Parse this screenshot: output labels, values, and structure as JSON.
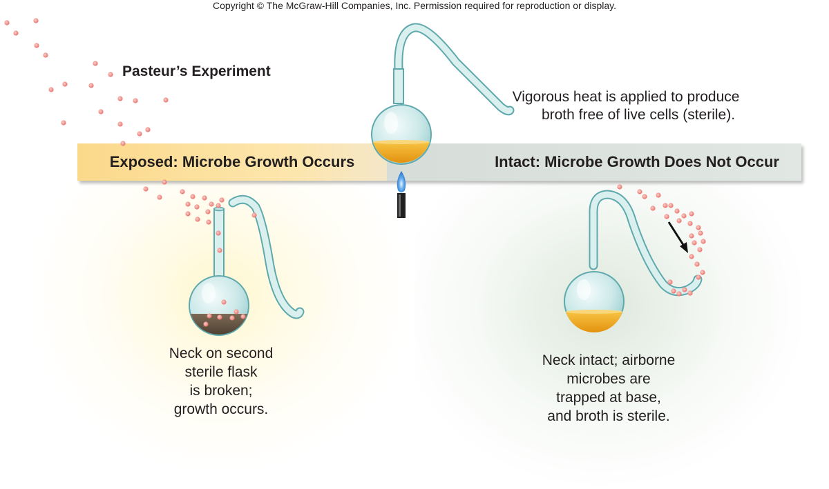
{
  "copyright": "Copyright © The McGraw-Hill Companies, Inc. Permission required for reproduction or display.",
  "title": "Pasteur’s Experiment",
  "band": {
    "left_label": "Exposed: Microbe Growth Occurs",
    "right_label": "Intact: Microbe Growth Does Not Occur"
  },
  "notes": {
    "heat_line1": "Vigorous heat is applied to produce",
    "heat_line2": "broth free of live cells (sterile).",
    "broken_lines": [
      "Neck on second",
      "sterile flask",
      "is broken;",
      "growth occurs."
    ],
    "intact_lines": [
      "Neck intact; airborne",
      "microbes are",
      "trapped at base,",
      "and broth is sterile."
    ]
  },
  "colors": {
    "band_exposed": "#fde6ad",
    "band_intact": "#dfe5e1",
    "glass": "#cdebea",
    "glass_edge": "#5fa9ad",
    "sterile_broth": "#f2a81d",
    "contaminated_broth": "#6b5a48",
    "microbe": "#ef8a84",
    "flame": "#3a8de0"
  }
}
